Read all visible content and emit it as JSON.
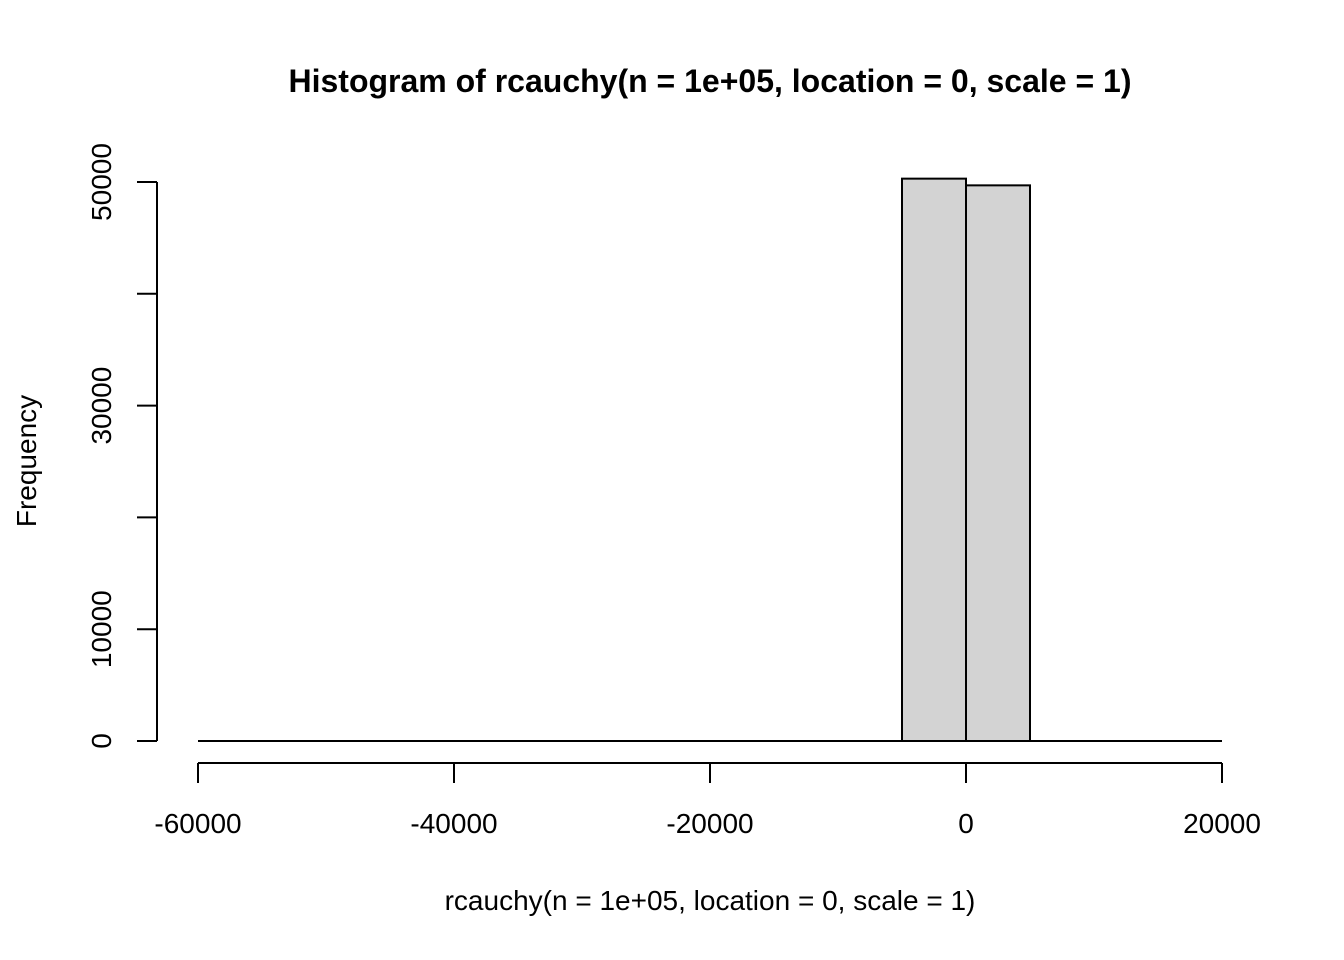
{
  "chart_data": {
    "type": "bar",
    "title": "Histogram of rcauchy(n = 1e+05, location = 0, scale = 1)",
    "xlabel": "rcauchy(n = 1e+05, location = 0, scale = 1)",
    "ylabel": "Frequency",
    "xlim": [
      -60000,
      20000
    ],
    "ylim": [
      0,
      50000
    ],
    "x_ticks": [
      -60000,
      -40000,
      -20000,
      0,
      20000
    ],
    "x_tick_labels": [
      "-60000",
      "-40000",
      "-20000",
      "0",
      "20000"
    ],
    "y_ticks": [
      0,
      10000,
      20000,
      30000,
      40000,
      50000
    ],
    "y_tick_labels": [
      "0",
      "10000",
      "",
      "30000",
      "",
      "50000"
    ],
    "bins": [
      {
        "start": -5000,
        "end": 0,
        "count": 50300
      },
      {
        "start": 0,
        "end": 5000,
        "count": 49700
      }
    ],
    "baseline_range": [
      -60000,
      20000
    ],
    "grid": false,
    "bar_fill": "#d3d3d3",
    "bar_stroke": "#000000"
  }
}
